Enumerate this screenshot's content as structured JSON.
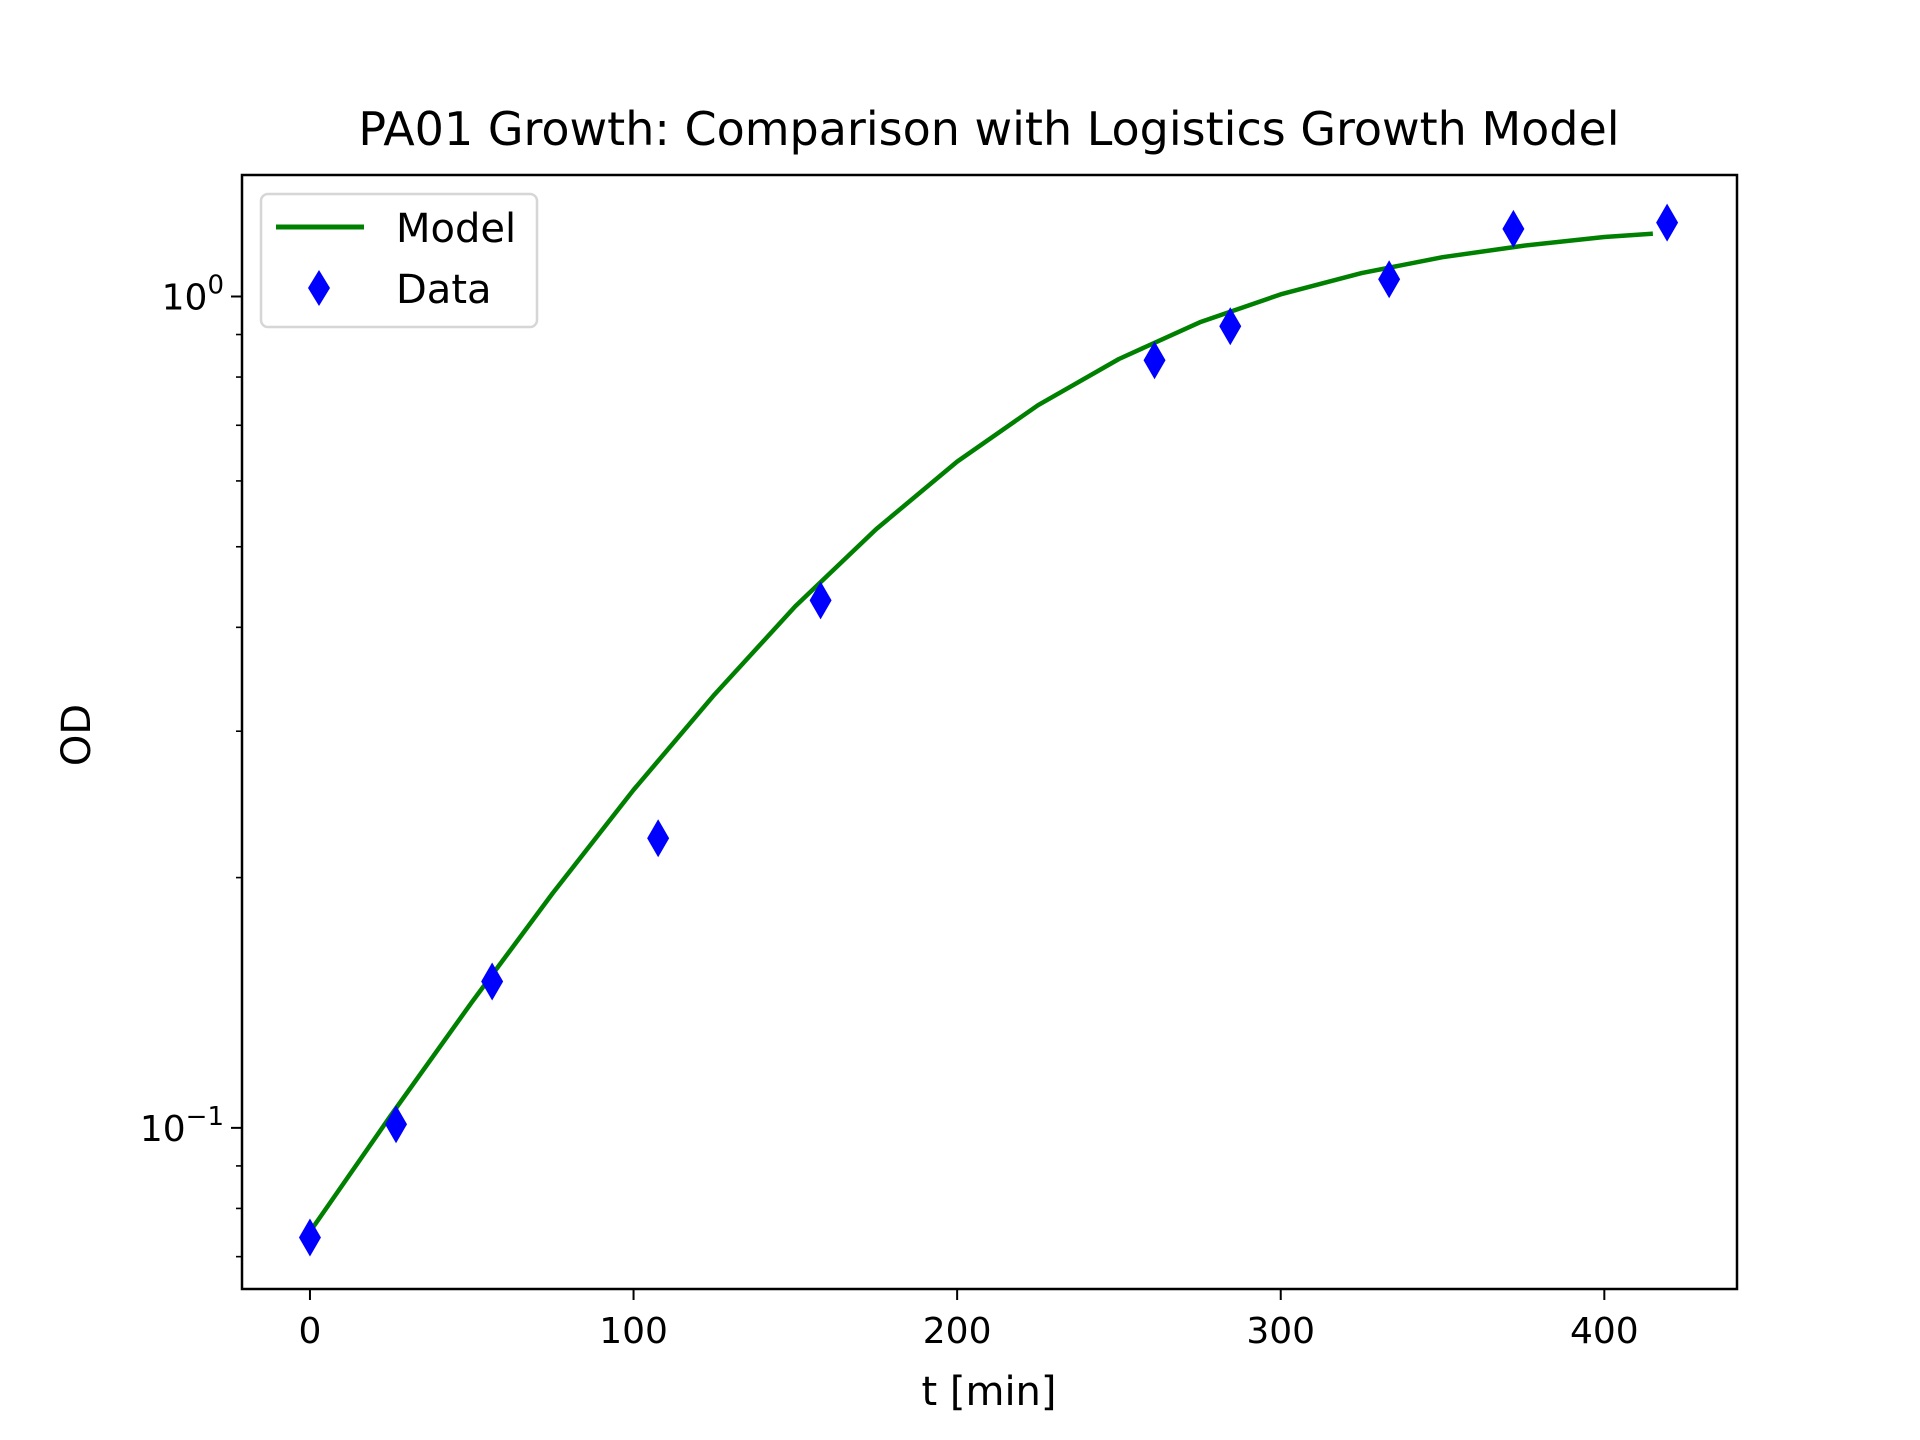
{
  "chart_data": {
    "type": "line",
    "title": "PA01 Growth: Comparison with Logistics Growth Model",
    "xlabel": "t [min]",
    "ylabel": "OD",
    "xlim": [
      -21,
      441
    ],
    "ylim": [
      0.064,
      1.4
    ],
    "yscale": "log",
    "grid": false,
    "legend_position": "top-left",
    "x_ticks": [
      0,
      100,
      200,
      300,
      400
    ],
    "x_tick_labels": [
      "0",
      "100",
      "200",
      "300",
      "400"
    ],
    "y_ticks": [
      {
        "value": 0.1,
        "base": "10",
        "exp": "−1"
      },
      {
        "value": 1,
        "base": "10",
        "exp": "0"
      }
    ],
    "series": [
      {
        "name": "Model",
        "kind": "line",
        "color": "#008000",
        "x": [
          0,
          25,
          50,
          75,
          100,
          125,
          150,
          175,
          200,
          225,
          250,
          275,
          300,
          325,
          350,
          375,
          400,
          415
        ],
        "y": [
          0.075,
          0.1035,
          0.1416,
          0.1915,
          0.255,
          0.332,
          0.424,
          0.525,
          0.633,
          0.74,
          0.841,
          0.931,
          1.006,
          1.067,
          1.115,
          1.151,
          1.179,
          1.19
        ]
      },
      {
        "name": "Data",
        "kind": "scatter",
        "marker": "thin-diamond",
        "color": "#0000ff",
        "x": [
          0,
          26.6,
          56.3,
          107.6,
          157.8,
          261,
          284.4,
          333.5,
          371.9,
          419.4
        ],
        "y": [
          0.0738,
          0.101,
          0.15,
          0.223,
          0.431,
          0.838,
          0.921,
          1.049,
          1.206,
          1.227
        ]
      }
    ]
  }
}
